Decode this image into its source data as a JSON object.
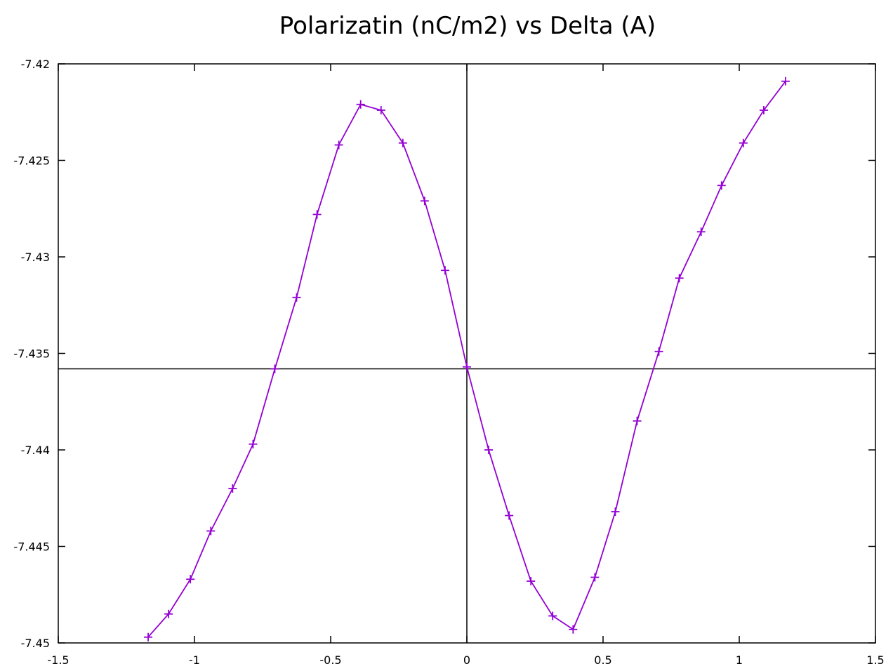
{
  "chart_data": {
    "type": "line",
    "title": "Polarizatin (nC/m2) vs Delta (A)",
    "xlabel": "",
    "ylabel": "",
    "xlim": [
      -1.5,
      1.5
    ],
    "ylim": [
      -7.45,
      -7.42
    ],
    "x_ticks": [
      -1.5,
      -1,
      -0.5,
      0,
      0.5,
      1,
      1.5
    ],
    "x_tick_labels": [
      "-1.5",
      "-1",
      "-0.5",
      "0",
      "0.5",
      "1",
      "1.5"
    ],
    "y_ticks": [
      -7.45,
      -7.445,
      -7.44,
      -7.435,
      -7.43,
      -7.425,
      -7.42
    ],
    "y_tick_labels": [
      "-7.45",
      "-7.445",
      "-7.44",
      "-7.435",
      "-7.43",
      "-7.425",
      "-7.42"
    ],
    "grid": false,
    "axis_lines": {
      "x_zero_line": -7.4358,
      "y_zero_line": 0
    },
    "series_color": "#9400d3",
    "marker": "plus",
    "series": [
      {
        "name": "",
        "x": [
          -1.17,
          -1.095,
          -1.015,
          -0.94,
          -0.86,
          -0.785,
          -0.705,
          -0.625,
          -0.55,
          -0.47,
          -0.39,
          -0.315,
          -0.235,
          -0.155,
          -0.08,
          0.0,
          0.08,
          0.155,
          0.235,
          0.315,
          0.39,
          0.47,
          0.545,
          0.625,
          0.705,
          0.78,
          0.86,
          0.935,
          1.015,
          1.09,
          1.17
        ],
        "y": [
          -7.4497,
          -7.4485,
          -7.4467,
          -7.4442,
          -7.442,
          -7.4397,
          -7.4358,
          -7.4321,
          -7.4278,
          -7.4242,
          -7.4221,
          -7.4224,
          -7.4241,
          -7.4271,
          -7.4307,
          -7.4357,
          -7.44,
          -7.4434,
          -7.4468,
          -7.4486,
          -7.4493,
          -7.4466,
          -7.4432,
          -7.4385,
          -7.4349,
          -7.4311,
          -7.4287,
          -7.4263,
          -7.4241,
          -7.4224,
          -7.4209
        ]
      }
    ]
  }
}
